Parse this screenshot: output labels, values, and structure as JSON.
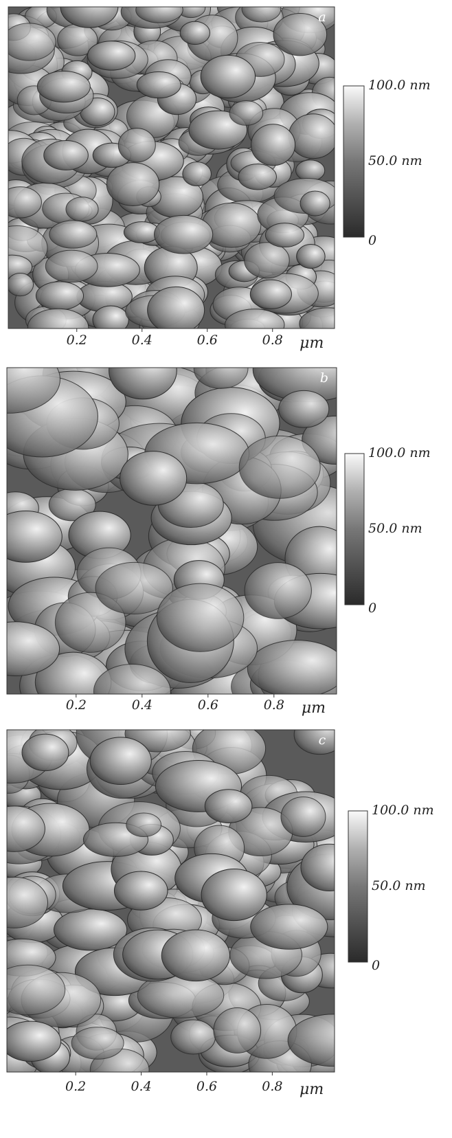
{
  "panels": [
    {
      "label": "a",
      "x_ticks": [
        "0.2",
        "0.4",
        "0.6",
        "0.8"
      ],
      "x_unit": "μm",
      "colorbar": [
        "100.0 nm",
        "50.0 nm",
        "0"
      ]
    },
    {
      "label": "b",
      "x_ticks": [
        "0.2",
        "0.4",
        "0.6",
        "0.8"
      ],
      "x_unit": "μm",
      "colorbar": [
        "100.0 nm",
        "50.0 nm",
        "0"
      ]
    },
    {
      "label": "c",
      "x_ticks": [
        "0.2",
        "0.4",
        "0.6",
        "0.8"
      ],
      "x_unit": "μm",
      "colorbar": [
        "100.0 nm",
        "50.0 nm",
        "0"
      ]
    }
  ]
}
